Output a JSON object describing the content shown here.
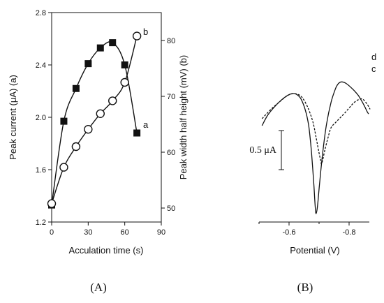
{
  "chart_data": [
    {
      "panel_label": "(A)",
      "type": "scatter",
      "xlabel": "Acculation time (s)",
      "ylabel": "Peak current (μA) (a)",
      "y2label": "Peak width half height (mV) (b)",
      "xlim": [
        0,
        90
      ],
      "ylim": [
        1.2,
        2.8
      ],
      "y2lim": [
        47.5,
        85
      ],
      "x_ticks": [
        "0",
        "30",
        "60",
        "90"
      ],
      "y_ticks": [
        "1.2",
        "1.6",
        "2.0",
        "2.4",
        "2.8"
      ],
      "y2_ticks": [
        "50",
        "60",
        "70",
        "80"
      ],
      "series": [
        {
          "name": "a",
          "marker": "filled-square",
          "axis": "left",
          "x": [
            0,
            10,
            20,
            30,
            40,
            50,
            60,
            70
          ],
          "y": [
            1.33,
            1.97,
            2.22,
            2.41,
            2.53,
            2.57,
            2.4,
            1.88
          ]
        },
        {
          "name": "b",
          "marker": "open-circle",
          "axis": "right",
          "x": [
            0,
            10,
            20,
            30,
            40,
            50,
            60,
            70
          ],
          "y": [
            50.8,
            57.3,
            61.0,
            64.1,
            66.9,
            69.2,
            72.5,
            80.8
          ]
        }
      ]
    },
    {
      "panel_label": "(B)",
      "type": "line",
      "xlabel": "Potential (V)",
      "x_ticks": [
        "-0.6",
        "-0.8"
      ],
      "scale_bar_label": "0.5 μA",
      "series": [
        {
          "name": "c",
          "style": "solid",
          "x": [
            -0.51,
            -0.53,
            -0.56,
            -0.59,
            -0.61,
            -0.625,
            -0.64,
            -0.655,
            -0.665,
            -0.672,
            -0.678,
            -0.683,
            -0.687,
            -0.69,
            -0.695,
            -0.702,
            -0.712,
            -0.725,
            -0.74,
            -0.755,
            -0.765,
            -0.775,
            -0.79,
            -0.81,
            -0.83,
            -0.85,
            -0.86,
            -0.865
          ],
          "y": [
            0.0,
            0.28,
            0.55,
            0.75,
            0.82,
            0.8,
            0.68,
            0.38,
            0.02,
            -0.45,
            -1.0,
            -1.55,
            -2.05,
            -2.25,
            -2.05,
            -1.45,
            -0.7,
            0.05,
            0.6,
            0.95,
            1.08,
            1.12,
            1.08,
            0.95,
            0.78,
            0.52,
            0.36,
            0.3
          ]
        },
        {
          "name": "d",
          "style": "dotted",
          "x": [
            -0.51,
            -0.54,
            -0.57,
            -0.595,
            -0.615,
            -0.635,
            -0.65,
            -0.665,
            -0.68,
            -0.69,
            -0.698,
            -0.705,
            -0.708,
            -0.712,
            -0.72,
            -0.73,
            -0.74,
            -0.755,
            -0.77,
            -0.785,
            -0.8,
            -0.815,
            -0.83,
            -0.845,
            -0.86,
            -0.87
          ],
          "y": [
            0.18,
            0.42,
            0.62,
            0.77,
            0.82,
            0.78,
            0.65,
            0.42,
            0.08,
            -0.3,
            -0.62,
            -0.88,
            -0.98,
            -0.88,
            -0.6,
            -0.3,
            -0.05,
            0.08,
            0.2,
            0.32,
            0.45,
            0.58,
            0.66,
            0.68,
            0.55,
            0.42
          ]
        }
      ]
    }
  ]
}
